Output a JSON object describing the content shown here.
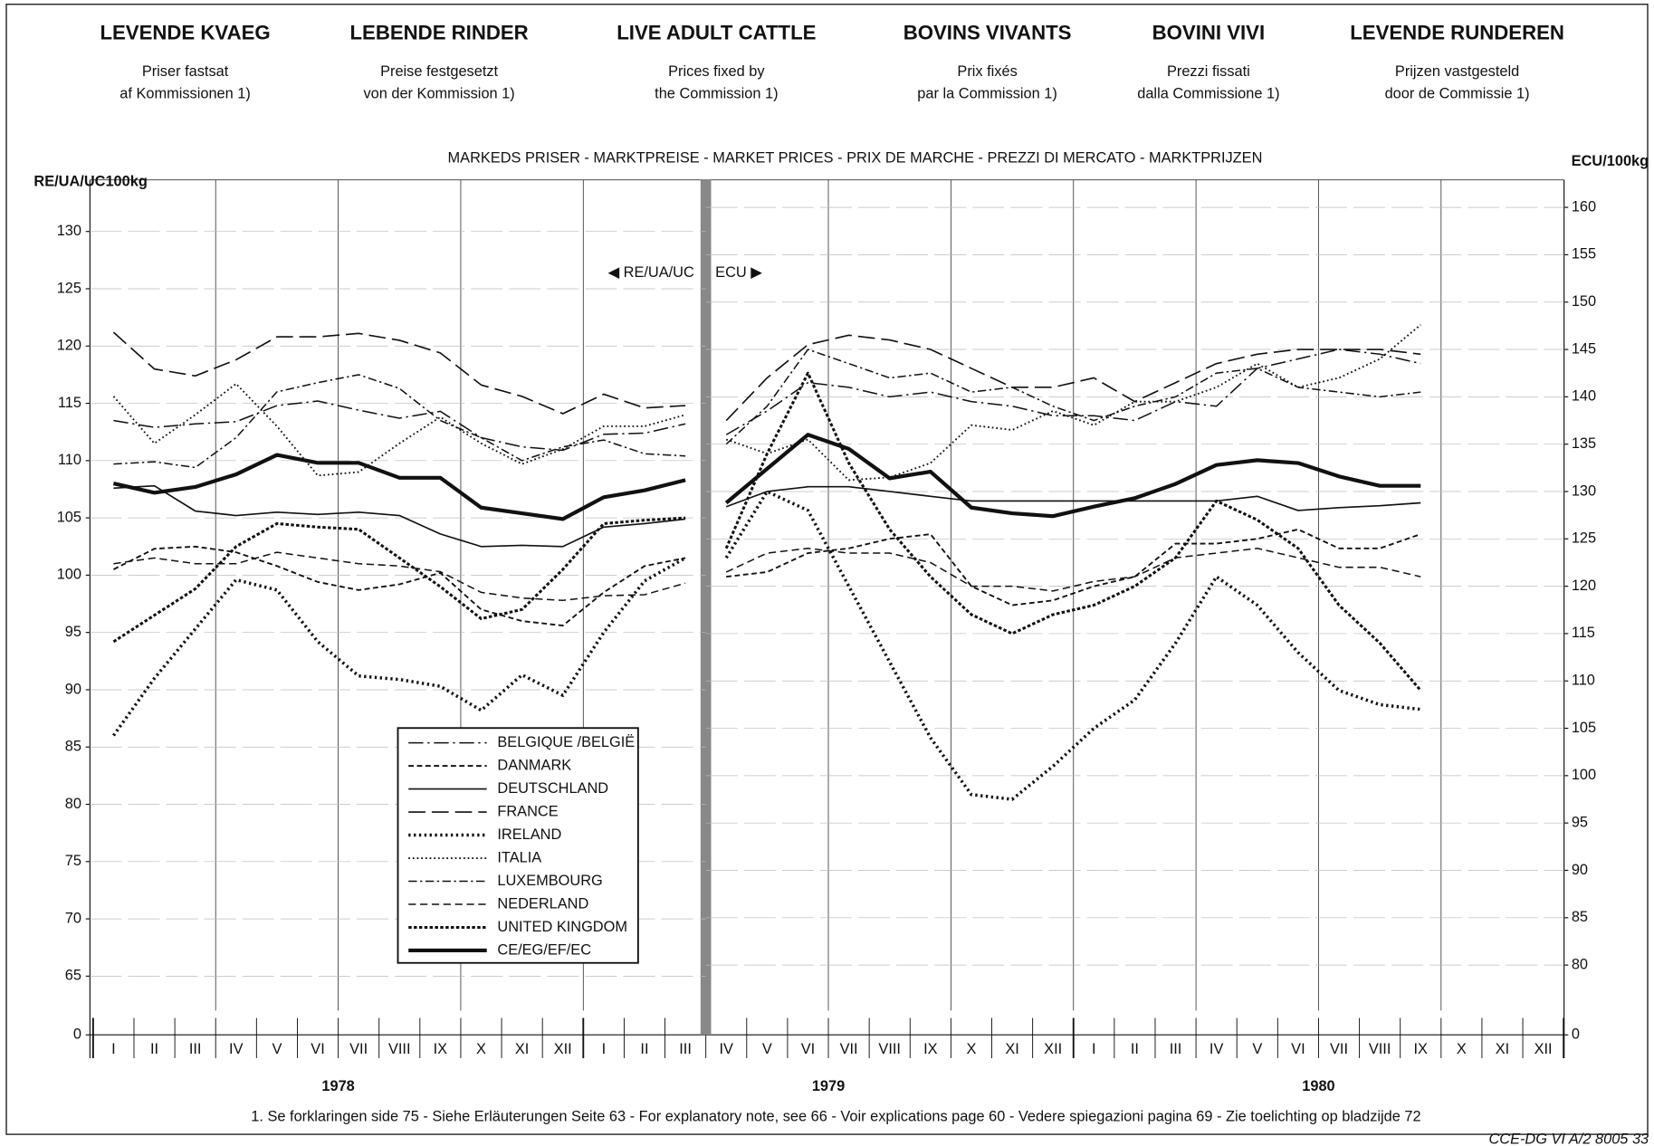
{
  "headers": [
    {
      "title": "LEVENDE KVAEG",
      "subtitle": [
        "Priser fastsat",
        "af Kommissionen 1)"
      ]
    },
    {
      "title": "LEBENDE RINDER",
      "subtitle": [
        "Preise festgesetzt",
        "von der Kommission 1)"
      ]
    },
    {
      "title": "LIVE ADULT CATTLE",
      "subtitle": [
        "Prices fixed by",
        "the Commission 1)"
      ]
    },
    {
      "title": "BOVINS VIVANTS",
      "subtitle": [
        "Prix fixés",
        "par la Commission 1)"
      ]
    },
    {
      "title": "BOVINI VIVI",
      "subtitle": [
        "Prezzi fissati",
        "dalla Commissione 1)"
      ]
    },
    {
      "title": "LEVENDE RUNDEREN",
      "subtitle": [
        "Prijzen vastgesteld",
        "door de Commissie 1)"
      ]
    }
  ],
  "banner": "MARKEDS PRISER - MARKTPREISE - MARKET PRICES - PRIX DE MARCHE - PREZZI DI MERCATO - MARKTPRIJZEN",
  "years": [
    "1978",
    "1979",
    "1980"
  ],
  "footnote": "1. Se forklaringen side 75 - Siehe Erläuterungen Seite 63 - For explanatory note, see 66 - Voir explications page 60 - Vedere spiegazioni pagina 69 - Zie toelichting op bladzijde 72",
  "code": "CCE-DG VI A/2 8005 33",
  "chart_data": [
    {
      "type": "line",
      "y_title": "RE/UA/UC100kg",
      "axis_note": "◀ RE/UA/UC",
      "ylim": [
        62,
        134.5
      ],
      "yticks": [
        65,
        70,
        75,
        80,
        85,
        90,
        95,
        100,
        105,
        110,
        115,
        120,
        125,
        130
      ],
      "ybreak_tick": 0,
      "grid": true,
      "categories": [
        "I",
        "II",
        "III",
        "IV",
        "V",
        "VI",
        "VII",
        "VIII",
        "IX",
        "X",
        "XI",
        "XII",
        "I",
        "II",
        "III"
      ],
      "series": [
        {
          "name": "BELGIQUE /BELGIË",
          "style": "dash-dot-long",
          "color": "#111",
          "values": [
            113.5,
            112.9,
            113.2,
            113.4,
            114.8,
            115.2,
            114.4,
            113.7,
            114.3,
            112,
            111.2,
            110.9,
            112.3,
            112.4,
            113.2
          ]
        },
        {
          "name": "DANMARK",
          "style": "chevron",
          "color": "#111",
          "values": [
            100.5,
            102.3,
            102.5,
            102,
            100.8,
            99.4,
            98.7,
            99.2,
            100.2,
            97,
            96,
            95.6,
            98.5,
            100.8,
            101.5
          ]
        },
        {
          "name": "DEUTSCHLAND",
          "style": "solid",
          "color": "#111",
          "values": [
            107.6,
            107.8,
            105.6,
            105.2,
            105.5,
            105.3,
            105.5,
            105.2,
            103.6,
            102.5,
            102.6,
            102.5,
            104.2,
            104.5,
            104.9
          ]
        },
        {
          "name": "FRANCE",
          "style": "long-dash",
          "color": "#111",
          "values": [
            121.2,
            118,
            117.4,
            118.8,
            120.8,
            120.8,
            121.1,
            120.5,
            119.4,
            116.6,
            115.6,
            114.1,
            115.8,
            114.6,
            114.8
          ]
        },
        {
          "name": "IRELAND",
          "style": "plus",
          "color": "#111",
          "values": [
            86,
            91,
            95.3,
            99.6,
            98.7,
            94.2,
            91.2,
            90.9,
            90.3,
            88.2,
            91.3,
            89.5,
            95,
            99.5,
            101.5
          ]
        },
        {
          "name": "ITALIA",
          "style": "dotted",
          "color": "#111",
          "values": [
            115.6,
            111.5,
            114,
            116.7,
            113,
            108.7,
            109,
            111.5,
            113.8,
            111.5,
            109.7,
            111,
            113,
            113,
            114
          ]
        },
        {
          "name": "LUXEMBOURG",
          "style": "dash-dot",
          "color": "#111",
          "values": [
            109.7,
            109.9,
            109.4,
            112,
            116,
            116.8,
            117.5,
            116.3,
            113.5,
            112,
            110,
            111.2,
            111.8,
            110.6,
            110.4
          ]
        },
        {
          "name": "NEDERLAND",
          "style": "dashed",
          "color": "#111",
          "values": [
            101,
            101.5,
            101,
            101,
            102,
            101.5,
            101,
            100.8,
            100.3,
            98.5,
            98,
            97.8,
            98.2,
            98.3,
            99.3
          ]
        },
        {
          "name": "UNITED KINGDOM",
          "style": "dotted-solid",
          "color": "#111",
          "values": [
            94.2,
            96.5,
            98.8,
            102.5,
            104.5,
            104.2,
            104,
            101.5,
            99,
            96.2,
            97,
            100.5,
            104.5,
            104.8,
            105
          ]
        },
        {
          "name": "CE/EG/EF/EC",
          "style": "bold",
          "color": "#111",
          "values": [
            108,
            107.2,
            107.7,
            108.8,
            110.5,
            109.8,
            109.8,
            108.5,
            108.5,
            105.9,
            105.4,
            104.9,
            106.8,
            107.4,
            108.3
          ]
        }
      ]
    },
    {
      "type": "line",
      "y2_title": "ECU/100kg",
      "axis_note": "ECU ▶",
      "y2lim": [
        75.2,
        162.9
      ],
      "y2ticks": [
        80,
        85,
        90,
        95,
        100,
        105,
        110,
        115,
        120,
        125,
        130,
        135,
        140,
        145,
        150,
        155,
        160
      ],
      "y2break_tick": 0,
      "grid": true,
      "categories": [
        "IV",
        "V",
        "VI",
        "VII",
        "VIII",
        "IX",
        "X",
        "XI",
        "XII",
        "I",
        "II",
        "III",
        "IV",
        "V",
        "VI",
        "VII",
        "VIII",
        "IX",
        "X",
        "XI",
        "XII"
      ],
      "series": [
        {
          "style": "dash-dot-long",
          "color": "#111",
          "axis": "y2",
          "values": [
            136,
            138.5,
            141.5,
            141,
            140,
            140.5,
            139.5,
            139,
            138,
            138,
            137.5,
            139.5,
            139,
            143,
            144,
            145,
            144.5,
            143.5,
            null,
            null,
            null
          ]
        },
        {
          "style": "chevron",
          "color": "#111",
          "axis": "y2",
          "values": [
            121,
            121.5,
            123.5,
            124,
            125,
            125.5,
            120,
            118,
            118.5,
            120,
            121,
            124.5,
            124.5,
            125,
            126,
            124,
            124,
            125.5,
            null,
            null,
            null
          ]
        },
        {
          "style": "solid",
          "color": "#111",
          "axis": "y2",
          "values": [
            128.4,
            130,
            130.5,
            130.5,
            130,
            129.5,
            129,
            129,
            129,
            129,
            129,
            129,
            129,
            129.5,
            128,
            128.3,
            128.5,
            128.8,
            null,
            null,
            null
          ]
        },
        {
          "style": "long-dash",
          "color": "#111",
          "axis": "y2",
          "values": [
            137.5,
            142,
            145.5,
            146.5,
            146,
            145,
            143,
            141,
            141,
            142,
            139.5,
            141.5,
            143.5,
            144.5,
            145,
            145,
            145,
            144.5,
            null,
            null,
            null
          ]
        },
        {
          "style": "plus",
          "color": "#111",
          "axis": "y2",
          "values": [
            123,
            130,
            128,
            120,
            112,
            104,
            98,
            97.5,
            101,
            105,
            108,
            114,
            121,
            118,
            113,
            109,
            107.5,
            107,
            null,
            null,
            null
          ]
        },
        {
          "style": "dotted",
          "color": "#111",
          "axis": "y2",
          "values": [
            135.5,
            134,
            135.5,
            131.2,
            131.5,
            133,
            137,
            136.5,
            138.5,
            137,
            139.5,
            139.5,
            141,
            143.5,
            141,
            142,
            144,
            147.6,
            null,
            null,
            null
          ]
        },
        {
          "style": "dash-dot",
          "color": "#111",
          "axis": "y2",
          "values": [
            135,
            139,
            145,
            143.5,
            142,
            142.5,
            140.5,
            141,
            139,
            137.5,
            139,
            140,
            142.5,
            143,
            141,
            140.5,
            140,
            140.5,
            null,
            null,
            null
          ]
        },
        {
          "style": "dashed",
          "color": "#111",
          "axis": "y2",
          "values": [
            121.5,
            123.5,
            124,
            123.5,
            123.5,
            122.5,
            120,
            120,
            119.5,
            120.5,
            121,
            123,
            123.5,
            124,
            123,
            122,
            122,
            121,
            null,
            null,
            null
          ]
        },
        {
          "style": "dotted-solid",
          "color": "#111",
          "axis": "y2",
          "values": [
            124,
            134,
            142.5,
            133,
            126,
            121,
            117,
            115,
            117,
            118,
            120,
            123,
            129,
            127,
            124,
            118,
            114,
            109,
            null,
            null,
            null
          ]
        },
        {
          "style": "bold",
          "color": "#111",
          "axis": "y2",
          "values": [
            128.8,
            132.4,
            136,
            134.5,
            131.4,
            132.1,
            128.3,
            127.7,
            127.4,
            128.4,
            129.3,
            130.8,
            132.8,
            133.3,
            133,
            131.6,
            130.6,
            130.6,
            null,
            null,
            null
          ]
        }
      ]
    }
  ]
}
